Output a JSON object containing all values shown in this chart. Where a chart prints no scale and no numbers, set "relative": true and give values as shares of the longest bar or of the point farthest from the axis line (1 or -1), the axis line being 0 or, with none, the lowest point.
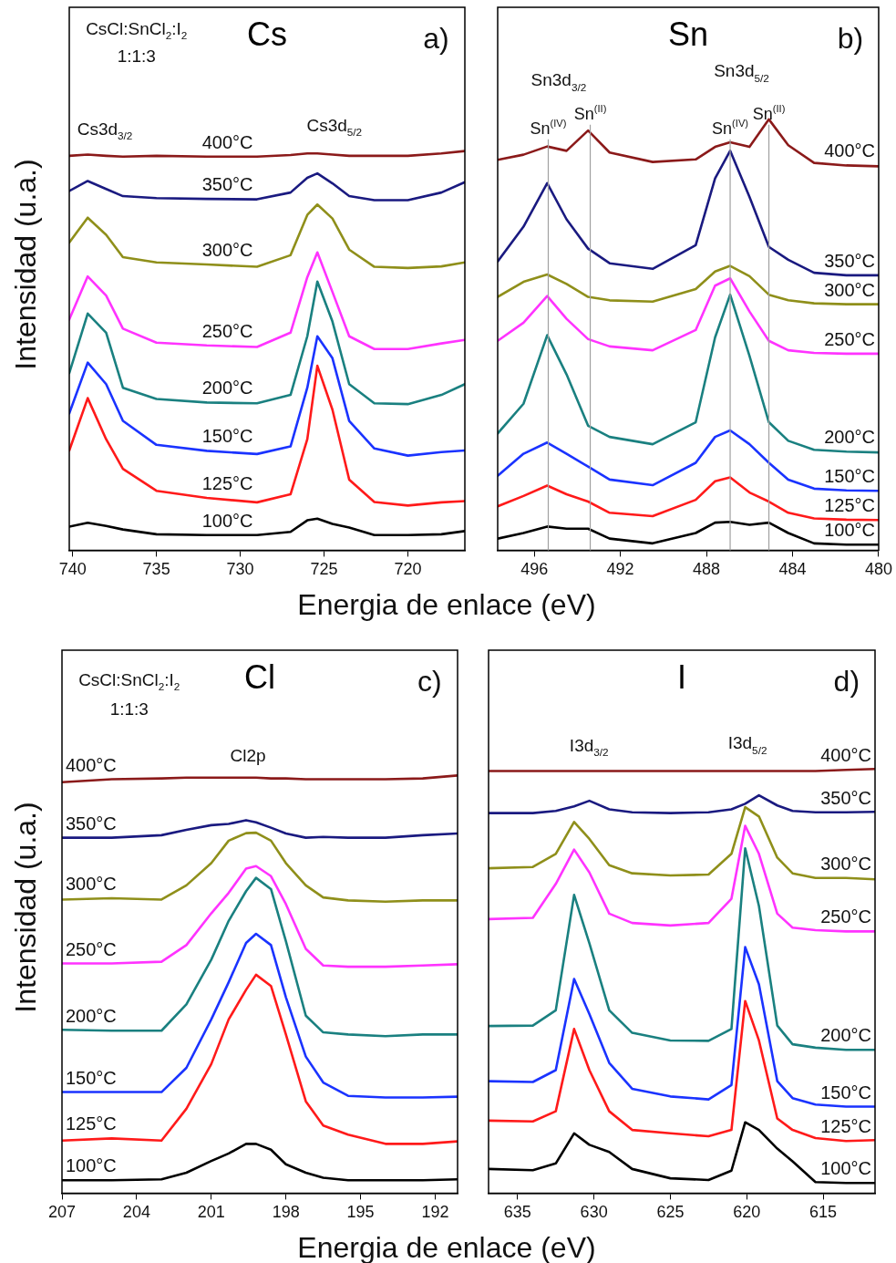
{
  "chart_data": [
    {
      "type": "line",
      "title": "Cs",
      "xlabel": "Energia de enlace (eV)",
      "ylabel": "Intensidad (u.a.)",
      "relative": true,
      "marker": "none",
      "annotations": [
        "a)",
        "CsCl:SnCl$_{2}$:I$_{2}$",
        "1:1:3",
        "Cs3d$_{3/2}$",
        "Cs3d$_{5/2}$"
      ],
      "xlim": [
        740.2,
        716.6
      ],
      "xticks": [
        740,
        735,
        730,
        725,
        720
      ],
      "x": [
        740.2,
        739.1,
        738,
        737,
        735,
        732,
        729,
        727,
        726,
        725.4,
        724.5,
        723.5,
        722,
        720,
        718,
        716.6
      ],
      "series": [
        {
          "name": "400°C",
          "color": "#8b1a1a",
          "values": [
            0.988,
            0.991,
            0.988,
            0.986,
            0.988,
            0.986,
            0.986,
            0.99,
            0.994,
            0.994,
            0.991,
            0.988,
            0.988,
            0.988,
            0.994,
            1.0
          ]
        },
        {
          "name": "350°C",
          "color": "#1a1a80",
          "values": [
            0.9,
            0.925,
            0.905,
            0.887,
            0.882,
            0.88,
            0.879,
            0.896,
            0.933,
            0.944,
            0.919,
            0.887,
            0.877,
            0.877,
            0.896,
            0.922
          ]
        },
        {
          "name": "300°C",
          "color": "#8f8f1a",
          "values": [
            0.771,
            0.833,
            0.79,
            0.734,
            0.721,
            0.716,
            0.71,
            0.739,
            0.84,
            0.866,
            0.831,
            0.753,
            0.71,
            0.707,
            0.711,
            0.721
          ]
        },
        {
          "name": "250°C",
          "color": "#ff33ff",
          "values": [
            0.578,
            0.686,
            0.638,
            0.555,
            0.52,
            0.513,
            0.509,
            0.545,
            0.684,
            0.746,
            0.647,
            0.536,
            0.504,
            0.504,
            0.518,
            0.527
          ]
        },
        {
          "name": "200°C",
          "color": "#1a8080",
          "values": [
            0.444,
            0.593,
            0.545,
            0.407,
            0.379,
            0.37,
            0.368,
            0.389,
            0.536,
            0.673,
            0.573,
            0.416,
            0.368,
            0.366,
            0.389,
            0.416
          ]
        },
        {
          "name": "150°C",
          "color": "#1a33ff",
          "values": [
            0.343,
            0.47,
            0.416,
            0.324,
            0.264,
            0.249,
            0.241,
            0.26,
            0.407,
            0.536,
            0.481,
            0.324,
            0.255,
            0.237,
            0.246,
            0.25
          ]
        },
        {
          "name": "125°C",
          "color": "#ff1a1a",
          "values": [
            0.25,
            0.381,
            0.278,
            0.204,
            0.149,
            0.131,
            0.12,
            0.14,
            0.278,
            0.462,
            0.352,
            0.177,
            0.121,
            0.112,
            0.12,
            0.123
          ]
        },
        {
          "name": "100°C",
          "color": "#000000",
          "values": [
            0.059,
            0.069,
            0.061,
            0.052,
            0.04,
            0.038,
            0.038,
            0.046,
            0.075,
            0.079,
            0.066,
            0.057,
            0.038,
            0.038,
            0.04,
            0.048
          ]
        }
      ]
    },
    {
      "type": "line",
      "title": "Sn",
      "relative": true,
      "marker": "none",
      "annotations": [
        "b)",
        "Sn3d$_{3/2}$",
        "Sn3d$_{5/2}$"
      ],
      "ref_lines": [
        {
          "axis": "x",
          "value": 495.35,
          "label": "Sn$^{(IV)}$",
          "color": "#a0a0a0"
        },
        {
          "axis": "x",
          "value": 493.4,
          "label": "Sn$^{(II)}$",
          "color": "#a0a0a0"
        },
        {
          "axis": "x",
          "value": 486.9,
          "label": "Sn$^{(IV)}$",
          "color": "#a0a0a0"
        },
        {
          "axis": "x",
          "value": 485.1,
          "label": "Sn$^{(II)}$",
          "color": "#a0a0a0"
        }
      ],
      "xlim": [
        497.7,
        480
      ],
      "xticks": [
        496,
        492,
        488,
        484,
        480
      ],
      "x": [
        497.7,
        496.5,
        495.4,
        494.5,
        493.5,
        492.5,
        490.5,
        488.5,
        487.6,
        486.9,
        486,
        485.1,
        484.2,
        483,
        481.5,
        480
      ],
      "series": [
        {
          "name": "400°C",
          "color": "#8b1a1a",
          "values": [
            0.906,
            0.918,
            0.937,
            0.927,
            0.974,
            0.923,
            0.901,
            0.907,
            0.936,
            0.947,
            0.936,
            1.0,
            0.94,
            0.899,
            0.893,
            0.891
          ]
        },
        {
          "name": "350°C",
          "color": "#1a1a80",
          "values": [
            0.67,
            0.751,
            0.852,
            0.768,
            0.7,
            0.666,
            0.653,
            0.708,
            0.863,
            0.927,
            0.82,
            0.704,
            0.674,
            0.644,
            0.638,
            0.638
          ]
        },
        {
          "name": "300°C",
          "color": "#8f8f1a",
          "values": [
            0.588,
            0.623,
            0.64,
            0.618,
            0.588,
            0.58,
            0.577,
            0.606,
            0.647,
            0.66,
            0.636,
            0.593,
            0.58,
            0.573,
            0.571,
            0.571
          ]
        },
        {
          "name": "250°C",
          "color": "#ff33ff",
          "values": [
            0.486,
            0.528,
            0.59,
            0.537,
            0.49,
            0.473,
            0.464,
            0.511,
            0.614,
            0.631,
            0.554,
            0.486,
            0.464,
            0.458,
            0.456,
            0.456
          ]
        },
        {
          "name": "200°C",
          "color": "#1a8080",
          "values": [
            0.271,
            0.34,
            0.499,
            0.408,
            0.289,
            0.263,
            0.246,
            0.297,
            0.494,
            0.593,
            0.451,
            0.297,
            0.254,
            0.233,
            0.229,
            0.227
          ]
        },
        {
          "name": "150°C",
          "color": "#1a33ff",
          "values": [
            0.173,
            0.224,
            0.25,
            0.224,
            0.194,
            0.164,
            0.151,
            0.203,
            0.263,
            0.278,
            0.246,
            0.203,
            0.164,
            0.143,
            0.139,
            0.138
          ]
        },
        {
          "name": "125°C",
          "color": "#ff1a1a",
          "values": [
            0.102,
            0.126,
            0.15,
            0.13,
            0.113,
            0.087,
            0.079,
            0.117,
            0.16,
            0.169,
            0.134,
            0.113,
            0.087,
            0.074,
            0.071,
            0.07
          ]
        },
        {
          "name": "100°C",
          "color": "#000000",
          "values": [
            0.027,
            0.04,
            0.055,
            0.05,
            0.05,
            0.027,
            0.016,
            0.04,
            0.064,
            0.066,
            0.059,
            0.064,
            0.04,
            0.016,
            0.013,
            0.013
          ]
        }
      ]
    },
    {
      "type": "line",
      "title": "Cl",
      "xlabel": "Energia de enlace (eV)",
      "ylabel": "Intensidad (u.a.)",
      "relative": true,
      "marker": "none",
      "annotations": [
        "c)",
        "CsCl:SnCl$_{2}$:I$_{2}$",
        "1:1:3",
        "Cl2p"
      ],
      "xlim": [
        207,
        191.1
      ],
      "xticks": [
        207,
        204,
        201,
        198,
        195,
        192
      ],
      "x": [
        207,
        205,
        203,
        202,
        201,
        200.3,
        199.6,
        199.2,
        198.6,
        198,
        197.2,
        196.5,
        195.5,
        194,
        192.5,
        191.1
      ],
      "series": [
        {
          "name": "400°C",
          "color": "#8b1a1a",
          "values": [
            0.984,
            0.991,
            0.993,
            0.995,
            0.995,
            0.995,
            0.995,
            0.995,
            0.993,
            0.993,
            0.991,
            0.991,
            0.991,
            0.991,
            0.993,
            1.0
          ]
        },
        {
          "name": "350°C",
          "color": "#1a1a80",
          "values": [
            0.851,
            0.851,
            0.857,
            0.87,
            0.881,
            0.884,
            0.893,
            0.888,
            0.875,
            0.861,
            0.851,
            0.853,
            0.851,
            0.851,
            0.857,
            0.861
          ]
        },
        {
          "name": "300°C",
          "color": "#8f8f1a",
          "values": [
            0.703,
            0.706,
            0.703,
            0.737,
            0.79,
            0.844,
            0.862,
            0.863,
            0.844,
            0.79,
            0.737,
            0.708,
            0.701,
            0.698,
            0.701,
            0.701
          ]
        },
        {
          "name": "250°C",
          "color": "#ff33ff",
          "values": [
            0.55,
            0.55,
            0.554,
            0.594,
            0.67,
            0.719,
            0.777,
            0.783,
            0.759,
            0.692,
            0.585,
            0.545,
            0.542,
            0.542,
            0.545,
            0.548
          ]
        },
        {
          "name": "200°C",
          "color": "#1a8080",
          "values": [
            0.391,
            0.389,
            0.389,
            0.452,
            0.559,
            0.652,
            0.723,
            0.755,
            0.728,
            0.603,
            0.425,
            0.385,
            0.38,
            0.376,
            0.38,
            0.38
          ]
        },
        {
          "name": "150°C",
          "color": "#1a33ff",
          "values": [
            0.242,
            0.242,
            0.242,
            0.3,
            0.416,
            0.505,
            0.599,
            0.621,
            0.594,
            0.469,
            0.327,
            0.265,
            0.233,
            0.229,
            0.229,
            0.231
          ]
        },
        {
          "name": "125°C",
          "color": "#ff1a1a",
          "values": [
            0.126,
            0.131,
            0.126,
            0.202,
            0.309,
            0.416,
            0.487,
            0.523,
            0.496,
            0.38,
            0.22,
            0.162,
            0.14,
            0.118,
            0.118,
            0.124
          ]
        },
        {
          "name": "100°C",
          "color": "#000000",
          "values": [
            0.031,
            0.031,
            0.033,
            0.049,
            0.077,
            0.095,
            0.118,
            0.118,
            0.104,
            0.069,
            0.049,
            0.037,
            0.031,
            0.031,
            0.031,
            0.033
          ]
        }
      ]
    },
    {
      "type": "line",
      "title": "I",
      "relative": true,
      "marker": "none",
      "annotations": [
        "d)",
        "I3d$_{3/2}$",
        "I3d$_{5/2}$"
      ],
      "xlim": [
        636.9,
        611.6
      ],
      "xticks": [
        635,
        630,
        625,
        620,
        615
      ],
      "x": [
        636.9,
        634,
        632.5,
        631.3,
        630.3,
        629,
        627.5,
        625,
        622.5,
        621,
        620.1,
        619.2,
        618,
        617,
        615.5,
        613.5,
        611.6
      ],
      "series": [
        {
          "name": "400°C",
          "color": "#8b1a1a",
          "values": [
            0.995,
            0.995,
            0.995,
            0.995,
            0.995,
            0.995,
            0.995,
            0.995,
            0.995,
            0.995,
            0.995,
            0.995,
            0.995,
            0.995,
            0.995,
            0.998,
            1.0
          ]
        },
        {
          "name": "350°C",
          "color": "#1a1a80",
          "values": [
            0.896,
            0.896,
            0.901,
            0.912,
            0.925,
            0.905,
            0.898,
            0.896,
            0.898,
            0.905,
            0.918,
            0.938,
            0.914,
            0.901,
            0.898,
            0.898,
            0.899
          ]
        },
        {
          "name": "300°C",
          "color": "#8f8f1a",
          "values": [
            0.766,
            0.769,
            0.8,
            0.875,
            0.835,
            0.773,
            0.754,
            0.749,
            0.751,
            0.8,
            0.91,
            0.888,
            0.791,
            0.754,
            0.743,
            0.743,
            0.74
          ]
        },
        {
          "name": "250°C",
          "color": "#ff33ff",
          "values": [
            0.646,
            0.649,
            0.729,
            0.81,
            0.756,
            0.659,
            0.637,
            0.631,
            0.637,
            0.694,
            0.866,
            0.8,
            0.659,
            0.626,
            0.62,
            0.617,
            0.617
          ]
        },
        {
          "name": "200°C",
          "color": "#1a8080",
          "values": [
            0.394,
            0.395,
            0.431,
            0.703,
            0.589,
            0.431,
            0.378,
            0.36,
            0.359,
            0.387,
            0.813,
            0.677,
            0.395,
            0.351,
            0.343,
            0.338,
            0.338
          ]
        },
        {
          "name": "150°C",
          "color": "#1a33ff",
          "values": [
            0.264,
            0.262,
            0.29,
            0.505,
            0.422,
            0.307,
            0.246,
            0.228,
            0.221,
            0.255,
            0.58,
            0.492,
            0.264,
            0.224,
            0.209,
            0.204,
            0.204
          ]
        },
        {
          "name": "125°C",
          "color": "#ff1a1a",
          "values": [
            0.171,
            0.169,
            0.193,
            0.387,
            0.29,
            0.193,
            0.149,
            0.141,
            0.134,
            0.149,
            0.453,
            0.36,
            0.176,
            0.149,
            0.13,
            0.123,
            0.125
          ]
        },
        {
          "name": "100°C",
          "color": "#000000",
          "values": [
            0.057,
            0.054,
            0.07,
            0.141,
            0.114,
            0.097,
            0.057,
            0.035,
            0.031,
            0.053,
            0.167,
            0.149,
            0.105,
            0.075,
            0.026,
            0.024,
            0.024
          ]
        }
      ]
    }
  ]
}
